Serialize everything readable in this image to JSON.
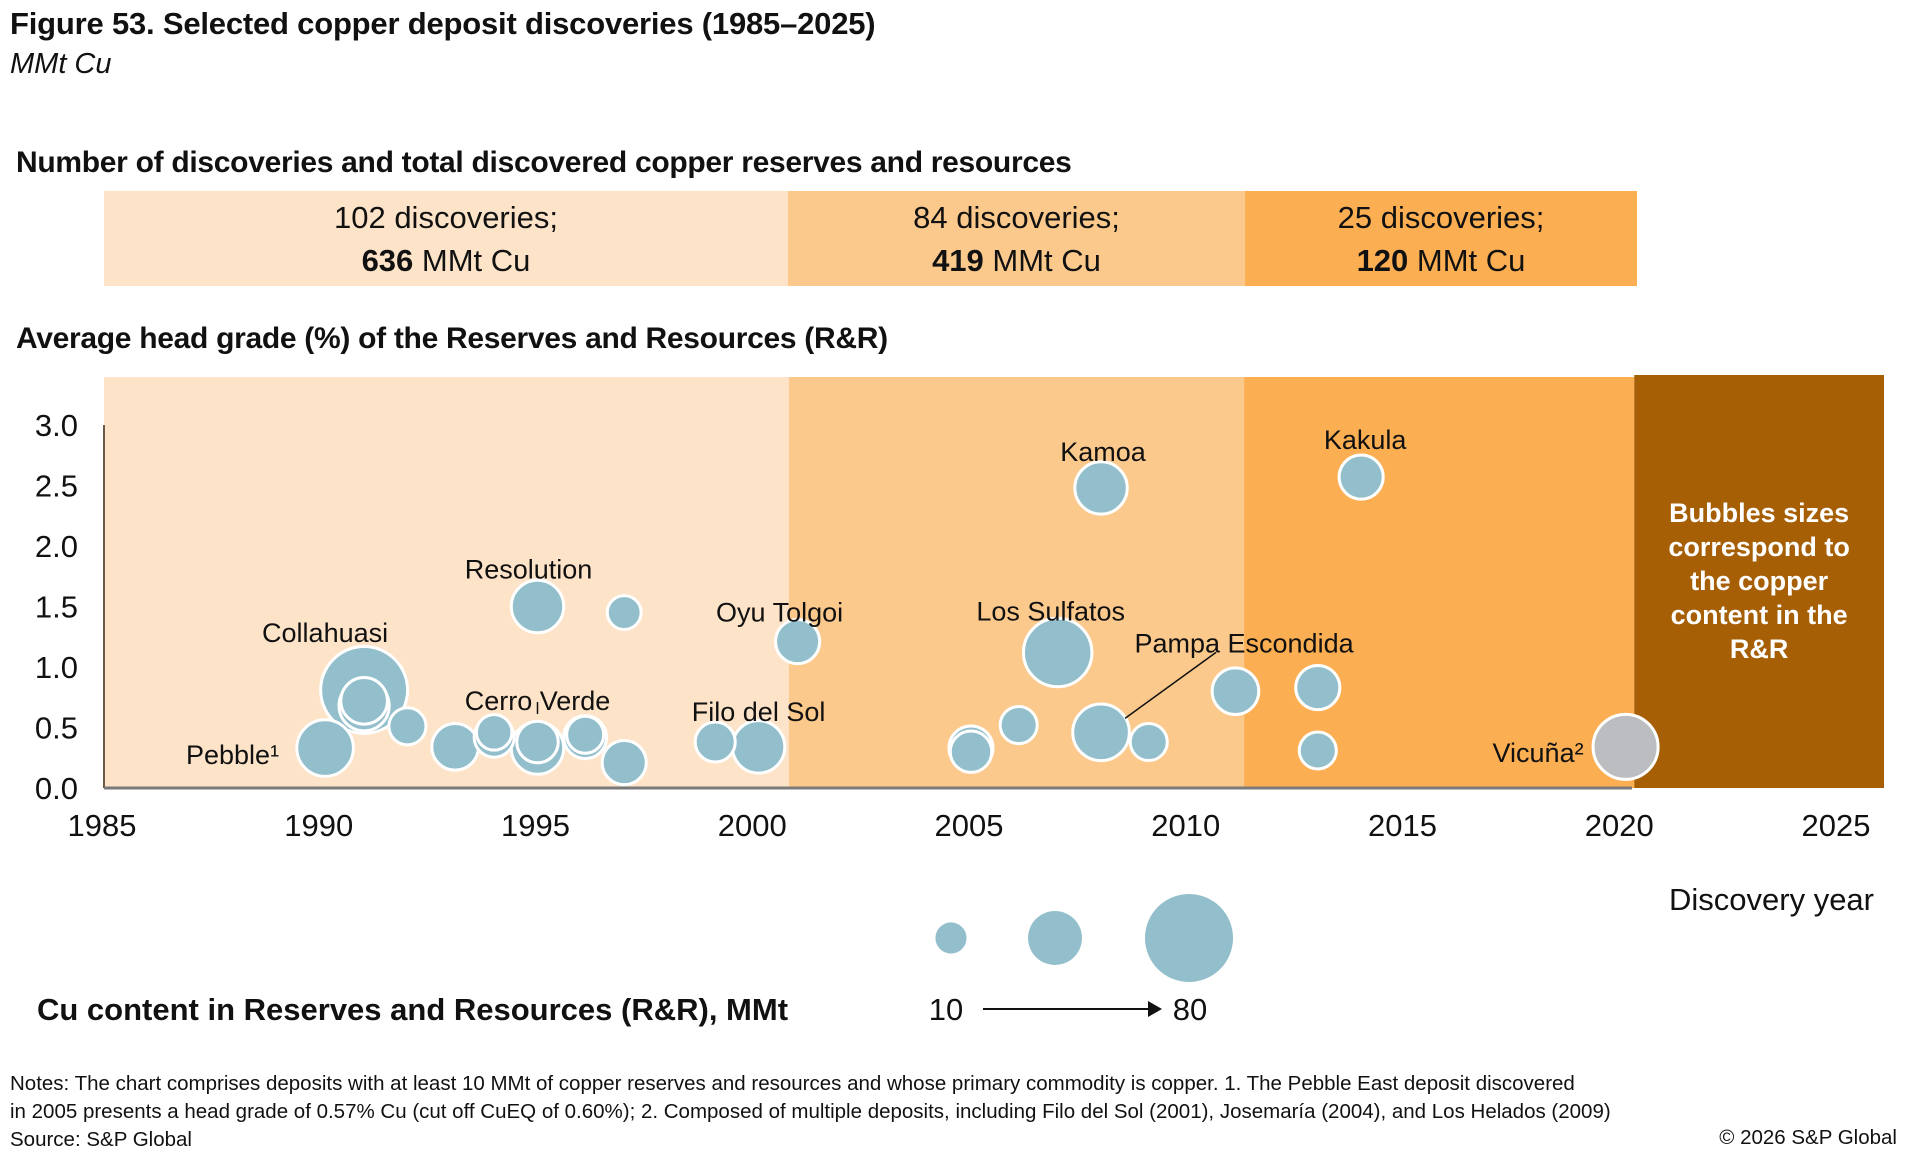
{
  "header": {
    "title": "Figure 53. Selected copper deposit discoveries (1985–2025)",
    "subtitle": "MMt Cu"
  },
  "summary": {
    "heading": "Number of discoveries and total discovered copper reserves and resources",
    "periods": [
      {
        "discoveries": "102 discoveries;",
        "total": "636",
        "unit": " MMt Cu",
        "color": "#FDE3C8"
      },
      {
        "discoveries": "84 discoveries;",
        "total": "419",
        "unit": " MMt Cu",
        "color": "#FCC98C"
      },
      {
        "discoveries": "25 discoveries;",
        "total": "120",
        "unit": " MMt Cu",
        "color": "#FBAE52"
      }
    ]
  },
  "colors": {
    "bubble": "#93BFCC",
    "bubble_highlight": "#BCBDC0",
    "panel": "#A65F05",
    "axis": "#7A7A7A"
  },
  "chart_data": {
    "type": "scatter",
    "subtype": "bubble",
    "title": "Average head grade (%) of the Reserves and Resources (R&R)",
    "xlabel": "Discovery year",
    "ylabel": "",
    "xlim": [
      1985,
      2025
    ],
    "ylim": [
      0,
      3.0
    ],
    "xticks": [
      "1985",
      "1990",
      "1995",
      "2000",
      "2005",
      "2010",
      "2015",
      "2020",
      "2025"
    ],
    "yticks": [
      "0.0",
      "0.5",
      "1.0",
      "1.5",
      "2.0",
      "2.5",
      "3.0"
    ],
    "grid": false,
    "periods": [
      {
        "from": 1985,
        "to": 2000.8,
        "color": "#FDE3C8"
      },
      {
        "from": 2000.8,
        "to": 2011.3,
        "color": "#FCC98C"
      },
      {
        "from": 2011.3,
        "to": 2020.3,
        "color": "#FBAE52"
      }
    ],
    "panel_note": {
      "from": 2020.3,
      "to": 2026,
      "text": [
        "Bubbles sizes",
        "correspond to",
        "the copper",
        "content in the",
        "R&R"
      ]
    },
    "size_label": "Cu content in Reserves  and Resources (R&R),  MMt",
    "size_legend": [
      {
        "value": 10,
        "label": "10"
      },
      {
        "value": 30,
        "label": ""
      },
      {
        "value": 80,
        "label": "80"
      }
    ],
    "points": [
      {
        "name": "Collahuasi",
        "year": 1991.0,
        "grade": 0.81,
        "cu": 66,
        "label": "Collahuasi"
      },
      {
        "name": "",
        "year": 1991.0,
        "grade": 0.68,
        "cu": 22
      },
      {
        "name": "",
        "year": 1991.0,
        "grade": 0.72,
        "cu": 19
      },
      {
        "name": "Pebble",
        "year": 1990.1,
        "grade": 0.33,
        "cu": 28,
        "label": "Pebble¹"
      },
      {
        "name": "",
        "year": 1992.0,
        "grade": 0.51,
        "cu": 12
      },
      {
        "name": "",
        "year": 1993.1,
        "grade": 0.34,
        "cu": 19
      },
      {
        "name": "",
        "year": 1994.0,
        "grade": 0.42,
        "cu": 14
      },
      {
        "name": "",
        "year": 1994.0,
        "grade": 0.46,
        "cu": 11
      },
      {
        "name": "Resolution",
        "year": 1995.0,
        "grade": 1.5,
        "cu": 24,
        "label": "Resolution"
      },
      {
        "name": "",
        "year": 1995.0,
        "grade": 0.33,
        "cu": 24
      },
      {
        "name": "Cerro Verde",
        "year": 1995.0,
        "grade": 0.38,
        "cu": 15,
        "label": "Cerro Verde"
      },
      {
        "name": "",
        "year": 1996.1,
        "grade": 0.42,
        "cu": 16
      },
      {
        "name": "",
        "year": 1996.1,
        "grade": 0.44,
        "cu": 12
      },
      {
        "name": "",
        "year": 1997.0,
        "grade": 1.45,
        "cu": 10
      },
      {
        "name": "",
        "year": 1997.0,
        "grade": 0.21,
        "cu": 17
      },
      {
        "name": "",
        "year": 1999.1,
        "grade": 0.38,
        "cu": 14
      },
      {
        "name": "Filo del Sol",
        "year": 2000.1,
        "grade": 0.34,
        "cu": 24,
        "label": "Filo del Sol"
      },
      {
        "name": "Oyu Tolgoi",
        "year": 2001.0,
        "grade": 1.21,
        "cu": 17,
        "label": "Oyu Tolgoi"
      },
      {
        "name": "",
        "year": 2005.0,
        "grade": 0.33,
        "cu": 17
      },
      {
        "name": "",
        "year": 2005.0,
        "grade": 0.3,
        "cu": 15
      },
      {
        "name": "",
        "year": 2006.1,
        "grade": 0.52,
        "cu": 12
      },
      {
        "name": "Los Sulfatos",
        "year": 2007.0,
        "grade": 1.12,
        "cu": 41,
        "label": "Los Sulfatos"
      },
      {
        "name": "Kamoa",
        "year": 2008.0,
        "grade": 2.48,
        "cu": 24,
        "label": "Kamoa"
      },
      {
        "name": "Pampa Escondida",
        "year": 2008.0,
        "grade": 0.46,
        "cu": 28,
        "label": "Pampa Escondida"
      },
      {
        "name": "",
        "year": 2009.1,
        "grade": 0.38,
        "cu": 12
      },
      {
        "name": "",
        "year": 2011.1,
        "grade": 0.8,
        "cu": 19
      },
      {
        "name": "",
        "year": 2013.0,
        "grade": 0.83,
        "cu": 17
      },
      {
        "name": "",
        "year": 2013.0,
        "grade": 0.31,
        "cu": 12
      },
      {
        "name": "Kakula",
        "year": 2014.0,
        "grade": 2.57,
        "cu": 17,
        "label": "Kakula"
      },
      {
        "name": "Vicuña",
        "year": 2020.1,
        "grade": 0.34,
        "cu": 37,
        "label": "Vicuña²",
        "highlight": true
      }
    ]
  },
  "footer": {
    "notes": [
      "Notes: The chart comprises deposits with at least 10 MMt of copper reserves and resources and whose primary commodity is copper. 1. The Pebble East deposit discovered",
      "in 2005 presents a head grade of 0.57% Cu (cut off CuEQ of 0.60%); 2. Composed of multiple deposits, including Filo del Sol (2001), Josemaría (2004), and Los Helados (2009)",
      "Source: S&P Global"
    ],
    "copyright": "© 2026 S&P Global"
  }
}
